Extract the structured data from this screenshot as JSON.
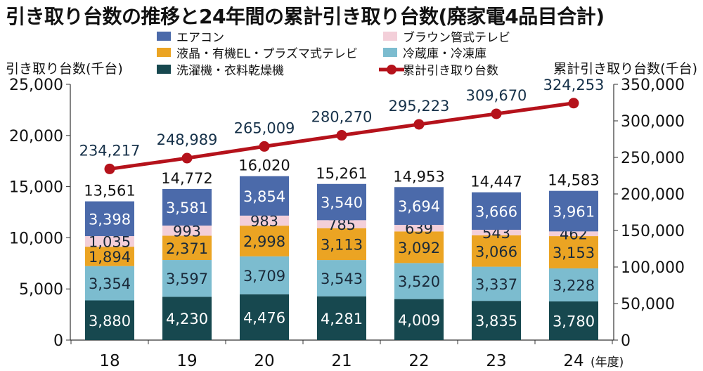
{
  "chart_data": {
    "type": "bar",
    "title": "引き取り台数の推移と24年間の累計引き取り台数(廃家電4品目合計)",
    "ylabel_left": "引き取り台数(千台)",
    "ylabel_right": "累計引き取り台数(千台)",
    "xlabel": "(年度)",
    "categories": [
      "18",
      "19",
      "20",
      "21",
      "22",
      "23",
      "24"
    ],
    "ylim_left": [
      0,
      25000
    ],
    "yticks_left": [
      0,
      5000,
      10000,
      15000,
      20000,
      25000
    ],
    "ytick_labels_left": [
      "0",
      "5,000",
      "10,000",
      "15,000",
      "20,000",
      "25,000"
    ],
    "ylim_right": [
      0,
      350000
    ],
    "yticks_right": [
      0,
      50000,
      100000,
      150000,
      200000,
      250000,
      300000,
      350000
    ],
    "ytick_labels_right": [
      "0",
      "50,000",
      "100,000",
      "150,000",
      "200,000",
      "250,000",
      "300,000",
      "350,000"
    ],
    "stacked": true,
    "series": [
      {
        "name": "洗濯機・衣料乾燥機",
        "color": "#17484f",
        "label_color": "#ffffff",
        "values": [
          3880,
          4230,
          4476,
          4281,
          4009,
          3835,
          3780
        ],
        "labels": [
          "3,880",
          "4,230",
          "4,476",
          "4,281",
          "4,009",
          "3,835",
          "3,780"
        ]
      },
      {
        "name": "冷蔵庫・冷凍庫",
        "color": "#7cbccf",
        "label_color": "#1a2a3a",
        "values": [
          3354,
          3597,
          3709,
          3543,
          3520,
          3337,
          3228
        ],
        "labels": [
          "3,354",
          "3,597",
          "3,709",
          "3,543",
          "3,520",
          "3,337",
          "3,228"
        ]
      },
      {
        "name": "液晶・有機EL・プラズマ式テレビ",
        "color": "#eba423",
        "label_color": "#1a2a3a",
        "values": [
          1894,
          2371,
          2998,
          3113,
          3092,
          3066,
          3153
        ],
        "labels": [
          "1,894",
          "2,371",
          "2,998",
          "3,113",
          "3,092",
          "3,066",
          "3,153"
        ]
      },
      {
        "name": "ブラウン管式テレビ",
        "color": "#f3cfd9",
        "label_color": "#1a2a3a",
        "values": [
          1035,
          993,
          983,
          785,
          639,
          543,
          462
        ],
        "labels": [
          "1,035",
          "993",
          "983",
          "785",
          "639",
          "543",
          "462"
        ]
      },
      {
        "name": "エアコン",
        "color": "#4b6aaa",
        "label_color": "#ffffff",
        "values": [
          3398,
          3581,
          3854,
          3540,
          3694,
          3666,
          3961
        ],
        "labels": [
          "3,398",
          "3,581",
          "3,854",
          "3,540",
          "3,694",
          "3,666",
          "3,961"
        ]
      }
    ],
    "totals": [
      13561,
      14772,
      16020,
      15261,
      14953,
      14447,
      14583
    ],
    "total_labels": [
      "13,561",
      "14,772",
      "16,020",
      "15,261",
      "14,953",
      "14,447",
      "14,583"
    ],
    "line": {
      "name": "累計引き取り台数",
      "axis": "right",
      "color": "#b5121b",
      "values": [
        234217,
        248989,
        265009,
        280270,
        295223,
        309670,
        324253
      ],
      "labels": [
        "234,217",
        "248,989",
        "265,009",
        "280,270",
        "295,223",
        "309,670",
        "324,253"
      ]
    },
    "legend": {
      "placement": "top",
      "items": [
        {
          "name": "エアコン",
          "kind": "box",
          "color": "#4b6aaa"
        },
        {
          "name": "ブラウン管式テレビ",
          "kind": "box",
          "color": "#f3cfd9"
        },
        {
          "name": "液晶・有機EL・プラズマ式テレビ",
          "kind": "box",
          "color": "#eba423"
        },
        {
          "name": "冷蔵庫・冷凍庫",
          "kind": "box",
          "color": "#7cbccf"
        },
        {
          "name": "洗濯機・衣料乾燥機",
          "kind": "box",
          "color": "#17484f"
        },
        {
          "name": "累計引き取り台数",
          "kind": "line",
          "color": "#b5121b"
        }
      ]
    },
    "grid": false
  }
}
